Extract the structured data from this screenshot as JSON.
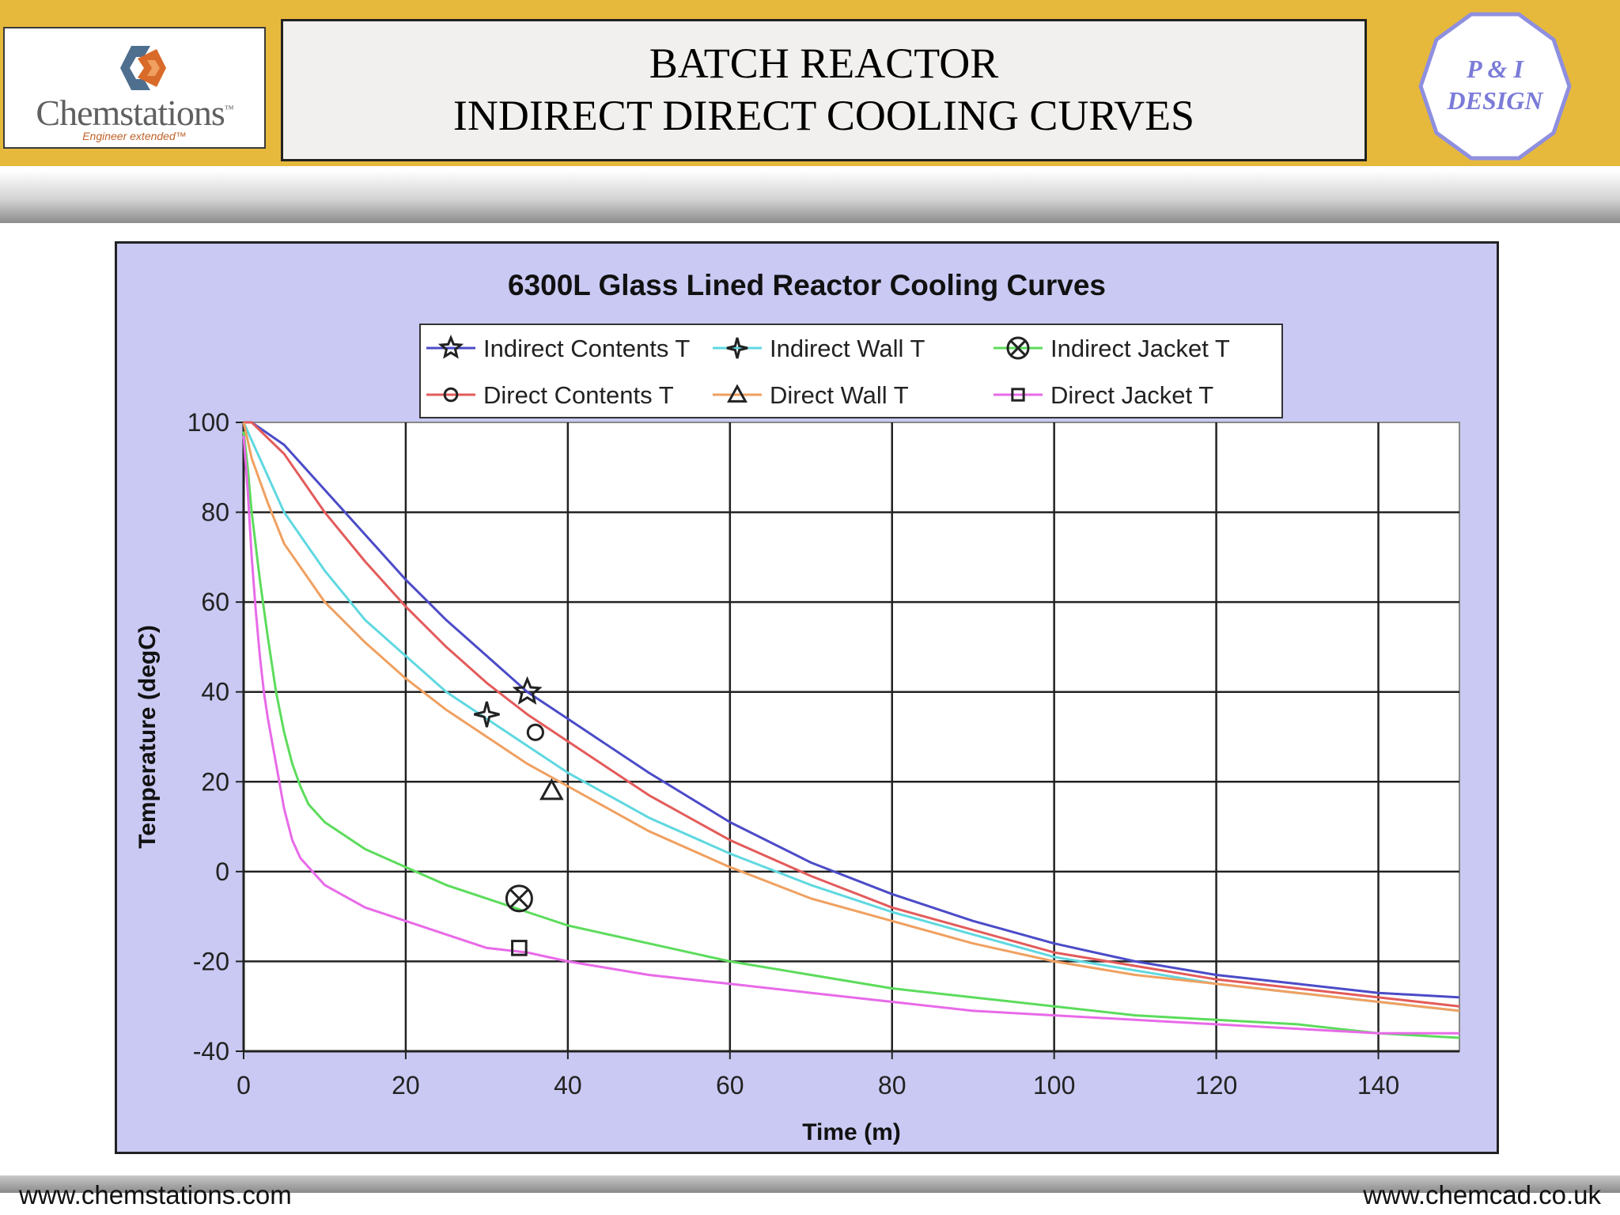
{
  "header": {
    "title_line1": "BATCH REACTOR",
    "title_line2": "INDIRECT DIRECT COOLING CURVES",
    "logo": {
      "name": "Chemstations",
      "trademark": "™",
      "tagline": "Engineer extended™"
    },
    "badge": {
      "line1": "P & I",
      "line2": "DESIGN"
    }
  },
  "footer": {
    "left": "www.chemstations.com",
    "right": "www.chemcad.co.uk"
  },
  "colors": {
    "header_band": "#e6b93c",
    "chart_background": "#c9c9f3",
    "plot_background": "#ffffff",
    "badge_outline": "#8f8fe0",
    "badge_text": "#7b7bd8"
  },
  "chart_data": {
    "type": "line",
    "title": "6300L Glass Lined  Reactor Cooling Curves",
    "xlabel": "Time (m)",
    "ylabel": "Temperature (degC)",
    "xlim": [
      0,
      150
    ],
    "ylim": [
      -40,
      100
    ],
    "xticks": [
      0,
      20,
      40,
      60,
      80,
      100,
      120,
      140
    ],
    "yticks": [
      100,
      80,
      60,
      40,
      20,
      0,
      -20,
      -40
    ],
    "grid": true,
    "legend_position": "top",
    "series": [
      {
        "name": "Indirect Contents T",
        "color": "#4b4bc8",
        "marker": "star",
        "marker_point": [
          35,
          40
        ],
        "x": [
          0,
          1,
          5,
          10,
          15,
          20,
          25,
          30,
          35,
          40,
          50,
          60,
          70,
          80,
          90,
          100,
          110,
          120,
          130,
          140,
          150
        ],
        "y": [
          100,
          100,
          95,
          85,
          75,
          65,
          56,
          48,
          40,
          34,
          22,
          11,
          2,
          -5,
          -11,
          -16,
          -20,
          -23,
          -25,
          -27,
          -28
        ]
      },
      {
        "name": "Indirect Wall T",
        "color": "#5fd8e0",
        "marker": "cross-star",
        "marker_point": [
          30,
          35
        ],
        "x": [
          0,
          1,
          3,
          5,
          10,
          15,
          20,
          25,
          30,
          35,
          40,
          50,
          60,
          70,
          80,
          90,
          100,
          110,
          120,
          130,
          140,
          150
        ],
        "y": [
          100,
          96,
          88,
          80,
          67,
          56,
          48,
          40,
          34,
          28,
          22,
          12,
          4,
          -3,
          -9,
          -14,
          -19,
          -22,
          -25,
          -27,
          -29,
          -31
        ]
      },
      {
        "name": "Indirect Jacket T",
        "color": "#5cdc5c",
        "marker": "circle-x",
        "marker_point": [
          34,
          -6
        ],
        "x": [
          0,
          0.5,
          1,
          2,
          3,
          4,
          5,
          6,
          7,
          8,
          10,
          15,
          20,
          25,
          30,
          35,
          40,
          50,
          60,
          70,
          80,
          90,
          100,
          110,
          120,
          130,
          140,
          150
        ],
        "y": [
          98,
          90,
          80,
          65,
          52,
          40,
          31,
          24,
          19,
          15,
          11,
          5,
          1,
          -3,
          -6,
          -9,
          -12,
          -16,
          -20,
          -23,
          -26,
          -28,
          -30,
          -32,
          -33,
          -34,
          -36,
          -37
        ]
      },
      {
        "name": "Direct Contents T",
        "color": "#e35b5b",
        "marker": "circle",
        "marker_point": [
          36,
          31
        ],
        "x": [
          0,
          1,
          5,
          10,
          15,
          20,
          25,
          30,
          35,
          40,
          50,
          60,
          70,
          80,
          90,
          100,
          110,
          120,
          130,
          140,
          150
        ],
        "y": [
          100,
          100,
          93,
          80,
          69,
          59,
          50,
          42,
          35,
          29,
          17,
          7,
          -1,
          -8,
          -13,
          -18,
          -21,
          -24,
          -26,
          -28,
          -30
        ]
      },
      {
        "name": "Direct Wall T",
        "color": "#f0a060",
        "marker": "triangle",
        "marker_point": [
          38,
          18
        ],
        "x": [
          0,
          1,
          3,
          5,
          10,
          15,
          20,
          25,
          30,
          35,
          40,
          50,
          60,
          70,
          80,
          90,
          100,
          110,
          120,
          130,
          140,
          150
        ],
        "y": [
          100,
          92,
          82,
          73,
          60,
          51,
          43,
          36,
          30,
          24,
          19,
          9,
          1,
          -6,
          -11,
          -16,
          -20,
          -23,
          -25,
          -27,
          -29,
          -31
        ]
      },
      {
        "name": "Direct Jacket T",
        "color": "#e86ae8",
        "marker": "square",
        "marker_point": [
          34,
          -17
        ],
        "x": [
          0,
          0.5,
          1,
          1.5,
          2,
          2.5,
          3,
          4,
          5,
          6,
          7,
          8,
          10,
          15,
          20,
          25,
          30,
          35,
          40,
          50,
          60,
          70,
          80,
          90,
          100,
          110,
          120,
          130,
          140,
          150
        ],
        "y": [
          97,
          85,
          70,
          58,
          48,
          40,
          34,
          24,
          14,
          7,
          3,
          1,
          -3,
          -8,
          -11,
          -14,
          -17,
          -18,
          -20,
          -23,
          -25,
          -27,
          -29,
          -31,
          -32,
          -33,
          -34,
          -35,
          -36,
          -36
        ]
      }
    ]
  }
}
